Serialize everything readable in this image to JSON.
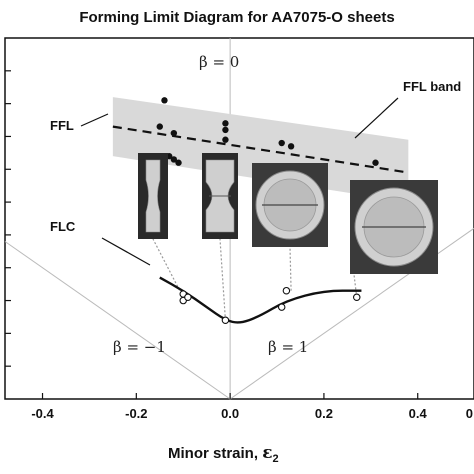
{
  "chart_data": {
    "type": "scatter",
    "title": "Forming Limit Diagram for AA7075-O sheets",
    "xlabel": "Minor strain, ",
    "xlabel_symbol": "ε",
    "xlabel_subscript": "2",
    "ylabel": "",
    "xlim": [
      -0.48,
      0.52
    ],
    "ylim": [
      0,
      1.1
    ],
    "x_ticks": [
      -0.4,
      -0.2,
      0,
      0.2,
      0.4
    ],
    "x_tick_labels": [
      "-0.4",
      "-0.2",
      "0.0",
      "0.2",
      "0.4"
    ],
    "extra_x_tick_label": "0",
    "y_ticks": [
      0.1,
      0.2,
      0.3,
      0.4,
      0.5,
      0.6,
      0.7,
      0.8,
      0.9,
      1.0
    ],
    "grid": false,
    "fracture_points": [
      {
        "x": -0.14,
        "y": 0.91
      },
      {
        "x": -0.15,
        "y": 0.83
      },
      {
        "x": -0.12,
        "y": 0.81
      },
      {
        "x": -0.13,
        "y": 0.74
      },
      {
        "x": -0.11,
        "y": 0.72
      },
      {
        "x": -0.12,
        "y": 0.73
      },
      {
        "x": -0.01,
        "y": 0.84
      },
      {
        "x": -0.01,
        "y": 0.82
      },
      {
        "x": -0.01,
        "y": 0.79
      },
      {
        "x": 0.11,
        "y": 0.78
      },
      {
        "x": 0.13,
        "y": 0.77
      },
      {
        "x": 0.31,
        "y": 0.72
      },
      {
        "x": 0.31,
        "y": 0.64
      }
    ],
    "necking_points": [
      {
        "x": -0.1,
        "y": 0.32
      },
      {
        "x": -0.1,
        "y": 0.3
      },
      {
        "x": -0.09,
        "y": 0.31
      },
      {
        "x": -0.01,
        "y": 0.24
      },
      {
        "x": 0.11,
        "y": 0.28
      },
      {
        "x": 0.12,
        "y": 0.33
      },
      {
        "x": 0.27,
        "y": 0.31
      }
    ],
    "ffl_line": [
      {
        "x": -0.25,
        "y": 0.83
      },
      {
        "x": 0.38,
        "y": 0.69
      }
    ],
    "ffl_band": {
      "upper": [
        {
          "x": -0.25,
          "y": 0.92
        },
        {
          "x": 0.38,
          "y": 0.79
        }
      ],
      "lower": [
        {
          "x": -0.25,
          "y": 0.74
        },
        {
          "x": 0.38,
          "y": 0.6
        }
      ]
    },
    "flc_curve": [
      {
        "x": -0.15,
        "y": 0.37
      },
      {
        "x": -0.1,
        "y": 0.33
      },
      {
        "x": -0.05,
        "y": 0.28
      },
      {
        "x": -0.01,
        "y": 0.24
      },
      {
        "x": 0.02,
        "y": 0.23
      },
      {
        "x": 0.06,
        "y": 0.25
      },
      {
        "x": 0.12,
        "y": 0.3
      },
      {
        "x": 0.2,
        "y": 0.33
      },
      {
        "x": 0.28,
        "y": 0.33
      }
    ],
    "ref_lines": [
      {
        "x1": -0.48,
        "y1": 0.48,
        "x2": 0.0,
        "y2": 0.0
      },
      {
        "x1": 0.0,
        "y1": 0.0,
        "x2": 0.52,
        "y2": 0.52
      },
      {
        "x1": 0.0,
        "y1": 0.0,
        "x2": 0.0,
        "y2": 1.1
      }
    ],
    "fracture_to_specimen_links": [
      {
        "x": -0.1,
        "y": 0.31
      },
      {
        "x": -0.01,
        "y": 0.24
      },
      {
        "x": 0.13,
        "y": 0.33
      },
      {
        "x": 0.27,
        "y": 0.31
      }
    ],
    "annotations": [
      {
        "name": "ffl-label",
        "text": "FFL"
      },
      {
        "name": "ffl-band-label",
        "text": "FFL  band"
      },
      {
        "name": "flc-label",
        "text": "FLC"
      },
      {
        "name": "beta-zero",
        "text": "β = 0"
      },
      {
        "name": "beta-minus-one",
        "text": "β = −1"
      },
      {
        "name": "beta-one",
        "text": "β = 1"
      }
    ]
  },
  "colors": {
    "band": "#d9d9d9",
    "axis": "#111111",
    "ref_line": "#bbbbbb",
    "photo_bg": "#2a2a2a",
    "specimen": "#c8c8c8"
  }
}
